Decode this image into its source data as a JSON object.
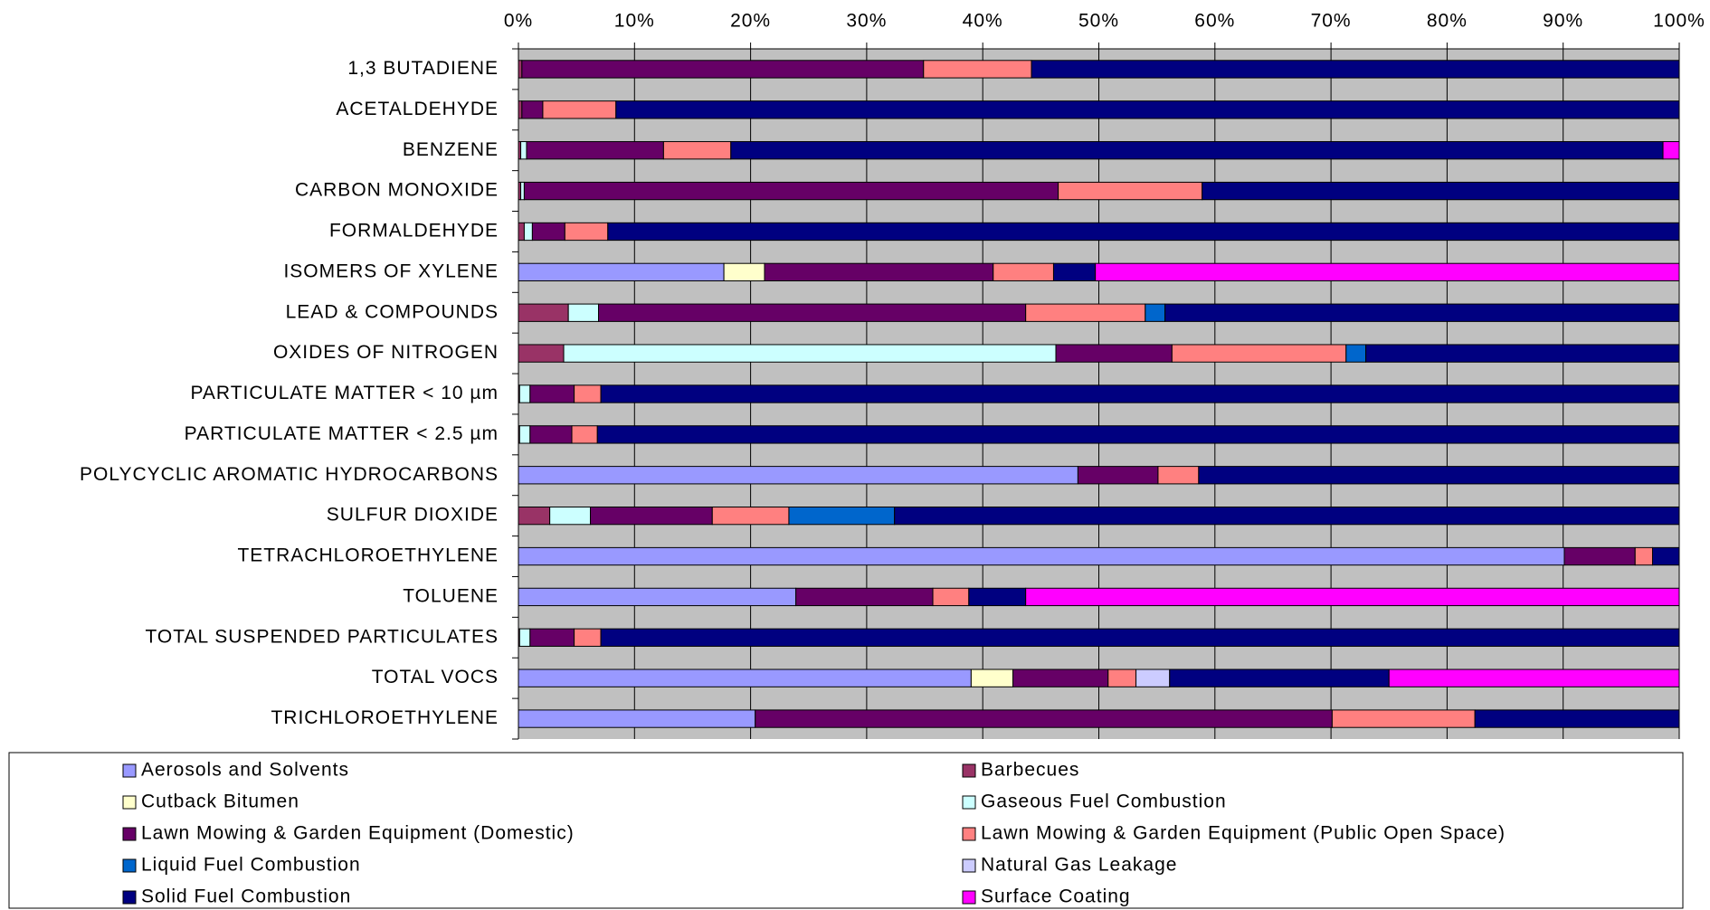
{
  "chart_data": {
    "type": "stacked_barh",
    "categories": [
      "1,3 BUTADIENE",
      "ACETALDEHYDE",
      "BENZENE",
      "CARBON MONOXIDE",
      "FORMALDEHYDE",
      "ISOMERS OF XYLENE",
      "LEAD & COMPOUNDS",
      "OXIDES OF NITROGEN",
      "PARTICULATE MATTER < 10 µm",
      "PARTICULATE MATTER < 2.5 µm",
      "POLYCYCLIC AROMATIC HYDROCARBONS",
      "SULFUR DIOXIDE",
      "TETRACHLOROETHYLENE",
      "TOLUENE",
      "TOTAL SUSPENDED PARTICULATES",
      "TOTAL VOCS",
      "TRICHLOROETHYLENE"
    ],
    "series": [
      {
        "name": "Aerosols and Solvents",
        "color": "#9999ff",
        "values": [
          0,
          0,
          0,
          0,
          0,
          17.7,
          0,
          0,
          0,
          0,
          48.2,
          0,
          90.1,
          23.9,
          0,
          39.0,
          20.4
        ]
      },
      {
        "name": "Barbecues",
        "color": "#993366",
        "values": [
          0.3,
          0.3,
          0.2,
          0.2,
          0.5,
          0,
          4.3,
          3.9,
          0.1,
          0.1,
          0,
          2.7,
          0,
          0,
          0.1,
          0,
          0
        ]
      },
      {
        "name": "Cutback Bitumen",
        "color": "#ffffcc",
        "values": [
          0,
          0,
          0,
          0,
          0,
          3.5,
          0,
          0,
          0,
          0,
          0,
          0,
          0,
          0,
          0,
          3.6,
          0
        ]
      },
      {
        "name": "Gaseous Fuel Combustion",
        "color": "#ccffff",
        "values": [
          0,
          0,
          0.5,
          0.3,
          0.7,
          0,
          2.6,
          42.4,
          0.9,
          0.9,
          0,
          3.5,
          0,
          0,
          0.9,
          0,
          0
        ]
      },
      {
        "name": "Lawn Mowing & Garden Equipment (Domestic)",
        "color": "#660066",
        "values": [
          34.6,
          1.8,
          11.8,
          46.0,
          2.8,
          19.7,
          36.8,
          10.0,
          3.8,
          3.6,
          6.9,
          10.5,
          6.1,
          11.8,
          3.8,
          8.2,
          49.7
        ]
      },
      {
        "name": "Lawn Mowing & Garden Equipment (Public Open Space)",
        "color": "#ff8080",
        "values": [
          9.3,
          6.3,
          5.8,
          12.4,
          3.7,
          5.2,
          10.3,
          15.0,
          2.3,
          2.2,
          3.5,
          6.6,
          1.5,
          3.1,
          2.3,
          2.4,
          12.3
        ]
      },
      {
        "name": "Liquid Fuel Combustion",
        "color": "#0066cc",
        "values": [
          0,
          0,
          0,
          0,
          0,
          0,
          1.7,
          1.7,
          0,
          0,
          0,
          9.1,
          0,
          0,
          0,
          0,
          0
        ]
      },
      {
        "name": "Natural Gas Leakage",
        "color": "#ccccff",
        "values": [
          0,
          0,
          0,
          0,
          0,
          0,
          0,
          0,
          0,
          0,
          0,
          0,
          0,
          0,
          0,
          2.9,
          0
        ]
      },
      {
        "name": "Solid Fuel Combustion",
        "color": "#000080",
        "values": [
          55.8,
          91.6,
          80.3,
          41.1,
          92.3,
          3.6,
          44.3,
          27.0,
          92.9,
          93.2,
          41.4,
          67.6,
          2.3,
          4.9,
          92.9,
          18.9,
          17.6
        ]
      },
      {
        "name": "Surface Coating",
        "color": "#ff00ff",
        "values": [
          0,
          0,
          1.4,
          0,
          0,
          50.3,
          0,
          0,
          0,
          0,
          0,
          0,
          0,
          56.3,
          0,
          25.0,
          0
        ]
      }
    ],
    "xlim": [
      0,
      100
    ],
    "xticks": [
      {
        "value": 0,
        "label": "0%"
      },
      {
        "value": 10,
        "label": "10%"
      },
      {
        "value": 20,
        "label": "20%"
      },
      {
        "value": 30,
        "label": "30%"
      },
      {
        "value": 40,
        "label": "40%"
      },
      {
        "value": 50,
        "label": "50%"
      },
      {
        "value": 60,
        "label": "60%"
      },
      {
        "value": 70,
        "label": "70%"
      },
      {
        "value": 80,
        "label": "80%"
      },
      {
        "value": 90,
        "label": "90%"
      },
      {
        "value": 100,
        "label": "100%"
      }
    ],
    "grid": true,
    "legend": "bottom"
  }
}
